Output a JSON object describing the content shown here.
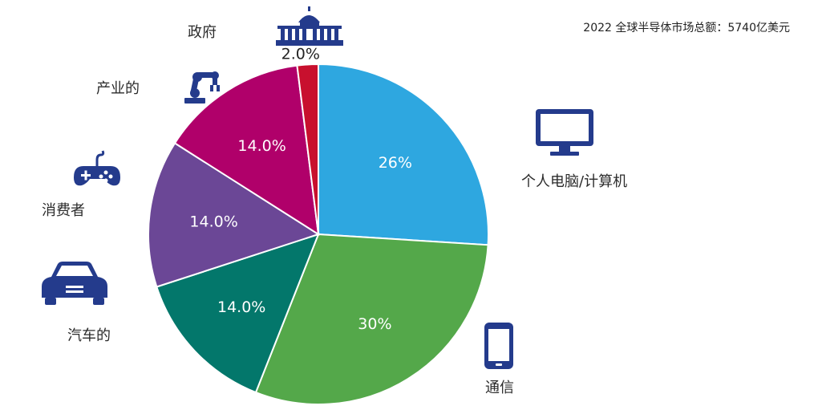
{
  "subtitle": "2022 全球半导体市场总额：5740亿美元",
  "icon_color": "#243b8c",
  "chart_data": {
    "type": "pie",
    "slices": [
      {
        "label": "个人电脑/计算机",
        "value": 26,
        "display": "26%",
        "color": "#2ea7e0",
        "icon": "monitor-icon"
      },
      {
        "label": "通信",
        "value": 30,
        "display": "30%",
        "color": "#54a84a",
        "icon": "smartphone-icon"
      },
      {
        "label": "汽车的",
        "value": 14.0,
        "display": "14.0%",
        "color": "#03776b",
        "icon": "car-icon"
      },
      {
        "label": "消费者",
        "value": 14.0,
        "display": "14.0%",
        "color": "#6b4796",
        "icon": "gamepad-icon"
      },
      {
        "label": "产业的",
        "value": 14.0,
        "display": "14.0%",
        "color": "#b0006a",
        "icon": "robot-arm-icon"
      },
      {
        "label": "政府",
        "value": 2.0,
        "display": "2.0%",
        "color": "#c8102e",
        "icon": "capitol-icon"
      }
    ]
  }
}
